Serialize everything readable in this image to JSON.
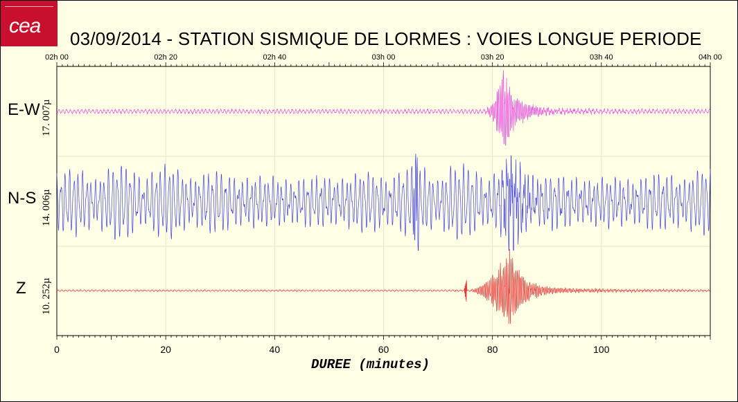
{
  "logo": {
    "text": "cea"
  },
  "title": "03/09/2014  -  STATION SISMIQUE DE LORMES : VOIES LONGUE PERIODE",
  "chart_data": {
    "type": "line",
    "time_axis": {
      "range_minutes": [
        0,
        120
      ],
      "tick_labels": [
        "02h 00",
        "02h 20",
        "02h 40",
        "03h 00",
        "03h 20",
        "03h 40",
        "04h 00"
      ],
      "tick_minutes": [
        0,
        20,
        40,
        60,
        80,
        100,
        120
      ]
    },
    "x_axis": {
      "label": "DUREE (minutes)",
      "range": [
        0,
        120
      ],
      "ticks": [
        0,
        20,
        40,
        60,
        80,
        100
      ],
      "tick_labels": [
        "0",
        "20",
        "40",
        "60",
        "80",
        "100"
      ]
    },
    "grid": true,
    "series": [
      {
        "name": "E-W",
        "scale": "17. 007µ",
        "color": "#e84de0",
        "noise": 0.04,
        "event_start": 78,
        "event_peak": 82,
        "amplitude": 1.0
      },
      {
        "name": "N-S",
        "scale": "14. 006µ",
        "color": "#4040e8",
        "noise": 0.55,
        "event_start": 80,
        "event_peak": 83,
        "amplitude": 0.9
      },
      {
        "name": "Z",
        "scale": "10. 252µ",
        "color": "#e83838",
        "noise": 0.015,
        "event_start": 75,
        "event_peak": 83,
        "amplitude": 1.0
      }
    ]
  }
}
